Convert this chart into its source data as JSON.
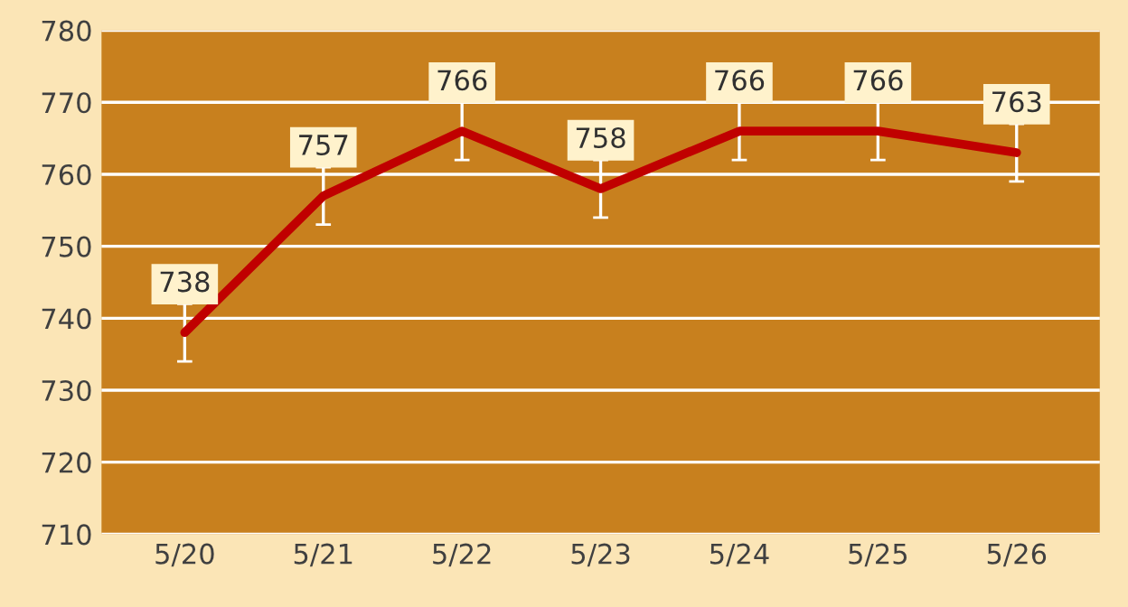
{
  "chart_data": {
    "type": "line",
    "categories": [
      "5/20",
      "5/21",
      "5/22",
      "5/23",
      "5/24",
      "5/25",
      "5/26"
    ],
    "values": [
      738,
      757,
      766,
      758,
      766,
      766,
      763
    ],
    "color": "#c00000",
    "errors": [
      4,
      4,
      4,
      4,
      4,
      4,
      4
    ],
    "ylim": [
      710,
      780
    ],
    "yticks": [
      710,
      720,
      730,
      740,
      750,
      760,
      770,
      780
    ],
    "grid": "y",
    "data_labels": true
  }
}
